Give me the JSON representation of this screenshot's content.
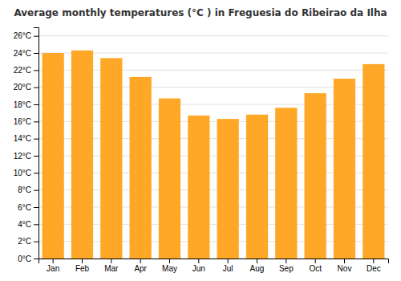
{
  "chart_data": {
    "type": "bar",
    "title": "Average monthly temperatures (°C ) in Freguesia do Ribeirao da Ilha",
    "categories": [
      "Jan",
      "Feb",
      "Mar",
      "Apr",
      "May",
      "Jun",
      "Jul",
      "Aug",
      "Sep",
      "Oct",
      "Nov",
      "Dec"
    ],
    "values": [
      24.0,
      24.3,
      23.4,
      21.2,
      18.7,
      16.7,
      16.3,
      16.8,
      17.6,
      19.3,
      21.0,
      22.7
    ],
    "color": "#FFA726",
    "ylim": [
      0,
      27
    ],
    "yticks": [
      {
        "value": 0,
        "label": "0°C"
      },
      {
        "value": 2,
        "label": "2°C"
      },
      {
        "value": 4,
        "label": "4°C"
      },
      {
        "value": 6,
        "label": "6°C"
      },
      {
        "value": 8,
        "label": "8°C"
      },
      {
        "value": 10,
        "label": "10°C"
      },
      {
        "value": 12,
        "label": "12°C"
      },
      {
        "value": 14,
        "label": "14°C"
      },
      {
        "value": 16,
        "label": "16°C"
      },
      {
        "value": 18,
        "label": "18°C"
      },
      {
        "value": 20,
        "label": "20°C"
      },
      {
        "value": 22,
        "label": "22°C"
      },
      {
        "value": 24,
        "label": "24°C"
      },
      {
        "value": 26,
        "label": "26°C"
      }
    ],
    "grid": true
  }
}
